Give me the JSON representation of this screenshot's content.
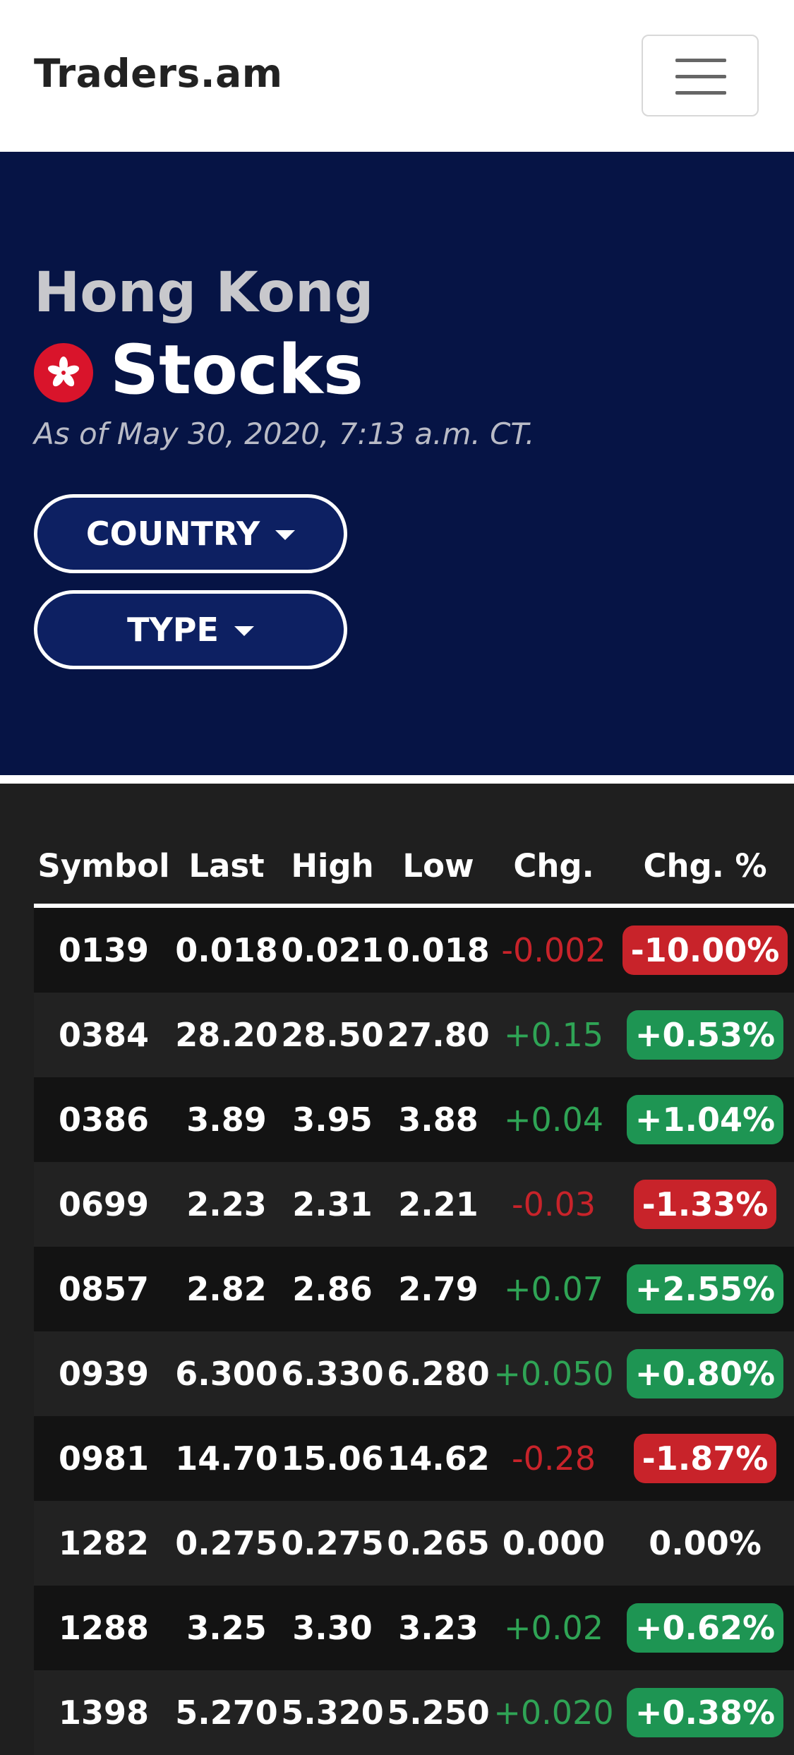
{
  "navbar": {
    "brand": "Traders.am"
  },
  "hero": {
    "region": "Hong Kong",
    "title": "Stocks",
    "as_of": "As of May 30, 2020, 7:13 a.m. CT.",
    "country_button": "COUNTRY",
    "type_button": "TYPE"
  },
  "colors": {
    "hero_bg": "#061445",
    "positive": "#1e9553",
    "negative": "#c8232a"
  },
  "table": {
    "headers": [
      "Symbol",
      "Last",
      "High",
      "Low",
      "Chg.",
      "Chg. %"
    ],
    "rows": [
      {
        "symbol": "0139",
        "last": "0.018",
        "high": "0.021",
        "low": "0.018",
        "chg": "-0.002",
        "chg_pct": "-10.00%",
        "dir": "neg"
      },
      {
        "symbol": "0384",
        "last": "28.20",
        "high": "28.50",
        "low": "27.80",
        "chg": "+0.15",
        "chg_pct": "+0.53%",
        "dir": "pos"
      },
      {
        "symbol": "0386",
        "last": "3.89",
        "high": "3.95",
        "low": "3.88",
        "chg": "+0.04",
        "chg_pct": "+1.04%",
        "dir": "pos"
      },
      {
        "symbol": "0699",
        "last": "2.23",
        "high": "2.31",
        "low": "2.21",
        "chg": "-0.03",
        "chg_pct": "-1.33%",
        "dir": "neg"
      },
      {
        "symbol": "0857",
        "last": "2.82",
        "high": "2.86",
        "low": "2.79",
        "chg": "+0.07",
        "chg_pct": "+2.55%",
        "dir": "pos"
      },
      {
        "symbol": "0939",
        "last": "6.300",
        "high": "6.330",
        "low": "6.280",
        "chg": "+0.050",
        "chg_pct": "+0.80%",
        "dir": "pos"
      },
      {
        "symbol": "0981",
        "last": "14.70",
        "high": "15.06",
        "low": "14.62",
        "chg": "-0.28",
        "chg_pct": "-1.87%",
        "dir": "neg"
      },
      {
        "symbol": "1282",
        "last": "0.275",
        "high": "0.275",
        "low": "0.265",
        "chg": "0.000",
        "chg_pct": "0.00%",
        "dir": "zero"
      },
      {
        "symbol": "1288",
        "last": "3.25",
        "high": "3.30",
        "low": "3.23",
        "chg": "+0.02",
        "chg_pct": "+0.62%",
        "dir": "pos"
      },
      {
        "symbol": "1398",
        "last": "5.270",
        "high": "5.320",
        "low": "5.250",
        "chg": "+0.020",
        "chg_pct": "+0.38%",
        "dir": "pos"
      }
    ]
  }
}
